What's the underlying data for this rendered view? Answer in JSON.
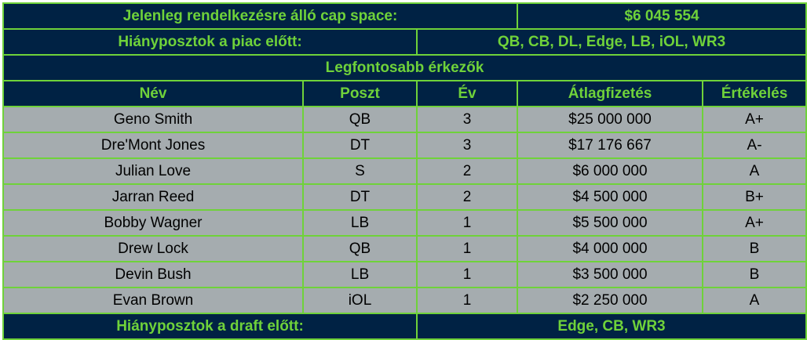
{
  "colors": {
    "header_bg": "#002244",
    "accent": "#6fd23a",
    "row_bg": "#a5acaf",
    "row_text": "#000000"
  },
  "cap_space": {
    "label": "Jelenleg rendelkezésre álló cap space:",
    "value": "$6 045 554"
  },
  "needs_before_market": {
    "label": "Hiányposztok a piac előtt:",
    "value": "QB, CB, DL, Edge, LB, iOL, WR3"
  },
  "section_title": "Legfontosabb érkezők",
  "columns": [
    "Név",
    "Poszt",
    "Év",
    "Átlagfizetés",
    "Értékelés"
  ],
  "rows": [
    [
      "Geno Smith",
      "QB",
      "3",
      "$25 000 000",
      "A+"
    ],
    [
      "Dre'Mont Jones",
      "DT",
      "3",
      "$17 176 667",
      "A-"
    ],
    [
      "Julian Love",
      "S",
      "2",
      "$6 000 000",
      "A"
    ],
    [
      "Jarran Reed",
      "DT",
      "2",
      "$4 500 000",
      "B+"
    ],
    [
      "Bobby Wagner",
      "LB",
      "1",
      "$5 500 000",
      "A+"
    ],
    [
      "Drew Lock",
      "QB",
      "1",
      "$4 000 000",
      "B"
    ],
    [
      "Devin Bush",
      "LB",
      "1",
      "$3 500 000",
      "B"
    ],
    [
      "Evan Brown",
      "iOL",
      "1",
      "$2 250 000",
      "A"
    ]
  ],
  "needs_before_draft": {
    "label": "Hiányposztok a draft előtt:",
    "value": "Edge, CB, WR3"
  }
}
